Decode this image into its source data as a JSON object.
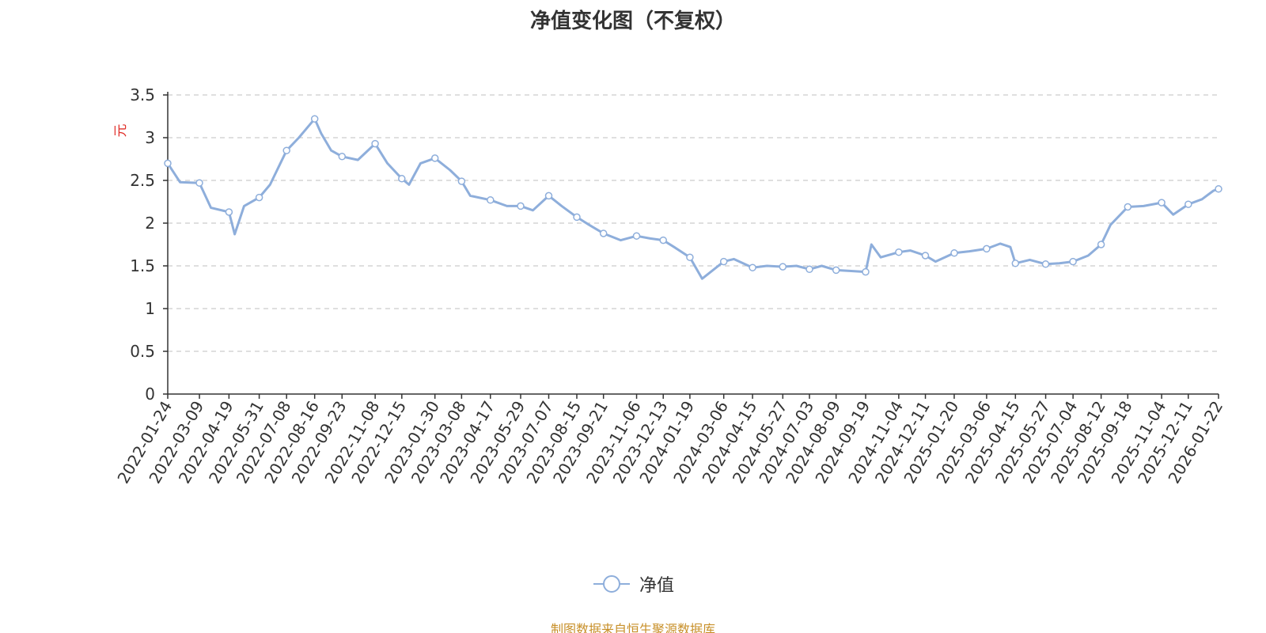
{
  "chart_data": {
    "type": "line",
    "title": "净值变化图（不复权）",
    "ylabel": "元",
    "xlabel": "",
    "ylim": [
      0,
      3.5
    ],
    "yticks": [
      "0",
      "0.5",
      "1",
      "1.5",
      "2",
      "2.5",
      "3",
      "3.5"
    ],
    "grid": true,
    "legend_position": "bottom-center",
    "x_tick_labels": [
      "2022-01-24",
      "2022-03-09",
      "2022-04-19",
      "2022-05-31",
      "2022-07-08",
      "2022-08-16",
      "2022-09-23",
      "2022-11-08",
      "2022-12-15",
      "2023-01-30",
      "2023-03-08",
      "2023-04-17",
      "2023-05-29",
      "2023-07-07",
      "2023-08-15",
      "2023-09-21",
      "2023-11-06",
      "2023-12-13",
      "2024-01-19",
      "2024-03-06",
      "2024-04-15",
      "2024-05-27",
      "2024-07-03",
      "2024-08-09",
      "2024-09-19",
      "2024-11-04",
      "2024-12-11",
      "2025-01-20",
      "2025-03-06",
      "2025-04-15",
      "2025-05-27",
      "2025-07-04",
      "2025-08-12",
      "2025-09-18",
      "2025-11-04",
      "2025-12-11",
      "2026-01-22"
    ],
    "series": [
      {
        "name": "净值",
        "color": "#8eaedb",
        "x": [
          "2022-01-24",
          "2022-02-10",
          "2022-03-09",
          "2022-03-25",
          "2022-04-19",
          "2022-04-27",
          "2022-05-10",
          "2022-05-31",
          "2022-06-15",
          "2022-07-08",
          "2022-07-25",
          "2022-08-16",
          "2022-08-25",
          "2022-09-08",
          "2022-09-23",
          "2022-10-15",
          "2022-11-08",
          "2022-11-25",
          "2022-12-15",
          "2022-12-25",
          "2023-01-10",
          "2023-01-30",
          "2023-02-20",
          "2023-03-08",
          "2023-03-20",
          "2023-04-17",
          "2023-05-10",
          "2023-05-29",
          "2023-06-15",
          "2023-07-07",
          "2023-07-25",
          "2023-08-15",
          "2023-09-01",
          "2023-09-21",
          "2023-10-15",
          "2023-11-06",
          "2023-11-25",
          "2023-12-13",
          "2023-12-28",
          "2024-01-19",
          "2024-02-05",
          "2024-02-20",
          "2024-03-06",
          "2024-03-20",
          "2024-04-15",
          "2024-05-05",
          "2024-05-27",
          "2024-06-15",
          "2024-07-03",
          "2024-07-20",
          "2024-08-09",
          "2024-08-30",
          "2024-09-19",
          "2024-09-27",
          "2024-10-10",
          "2024-11-04",
          "2024-11-20",
          "2024-12-11",
          "2024-12-25",
          "2025-01-20",
          "2025-02-10",
          "2025-03-06",
          "2025-03-25",
          "2025-04-08",
          "2025-04-15",
          "2025-05-05",
          "2025-05-27",
          "2025-06-15",
          "2025-07-04",
          "2025-07-25",
          "2025-08-12",
          "2025-08-25",
          "2025-09-18",
          "2025-10-10",
          "2025-11-04",
          "2025-11-20",
          "2025-12-11",
          "2025-12-30",
          "2026-01-15",
          "2026-01-22"
        ],
        "values": [
          2.7,
          2.48,
          2.47,
          2.18,
          2.13,
          1.87,
          2.2,
          2.3,
          2.45,
          2.85,
          3.0,
          3.22,
          3.05,
          2.85,
          2.78,
          2.74,
          2.93,
          2.7,
          2.52,
          2.45,
          2.7,
          2.76,
          2.62,
          2.49,
          2.32,
          2.27,
          2.2,
          2.2,
          2.15,
          2.32,
          2.2,
          2.07,
          1.98,
          1.88,
          1.8,
          1.85,
          1.82,
          1.8,
          1.72,
          1.6,
          1.35,
          1.45,
          1.55,
          1.58,
          1.48,
          1.5,
          1.49,
          1.5,
          1.46,
          1.5,
          1.45,
          1.44,
          1.43,
          1.75,
          1.6,
          1.66,
          1.68,
          1.62,
          1.55,
          1.65,
          1.67,
          1.7,
          1.76,
          1.72,
          1.53,
          1.57,
          1.52,
          1.53,
          1.55,
          1.62,
          1.75,
          1.98,
          2.19,
          2.2,
          2.24,
          2.1,
          2.22,
          2.28,
          2.38,
          2.4
        ]
      }
    ]
  },
  "legend": {
    "label": "净值"
  },
  "source_note": "制图数据来自恒生聚源数据库"
}
